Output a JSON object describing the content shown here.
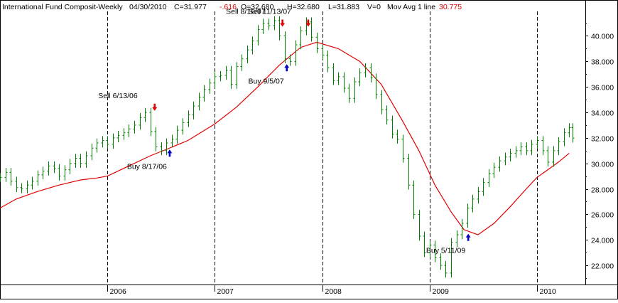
{
  "header": {
    "title": "International Fund Composit-Weekly",
    "date": "04/30/2010",
    "close": "C=31.977",
    "change": "-.616",
    "open": "O=32.680",
    "high": "H=32.680",
    "low": "L=31.883",
    "volume": "V=0",
    "mov_avg_label": "Mov Avg 1 line",
    "mov_avg_value": "30.775"
  },
  "colors": {
    "bars": "#008000",
    "moving_average": "#e00000",
    "sell_arrow": "#e00000",
    "buy_arrow": "#0000c0",
    "change_text": "#e00000",
    "mov_avg_value_text": "#e00000",
    "grid": "#000000"
  },
  "chart_data": {
    "type": "line",
    "title": "International Fund Composit-Weekly",
    "x_range": [
      2005.0,
      2010.45
    ],
    "ylim": [
      20.5,
      41.7
    ],
    "y_axis_side": "right",
    "y_ticks": [
      "22.000",
      "24.000",
      "26.000",
      "28.000",
      "30.000",
      "32.000",
      "34.000",
      "36.000",
      "38.000",
      "40.000"
    ],
    "x_ticks": [
      {
        "label": "2006",
        "x": 2006.0
      },
      {
        "label": "2007",
        "x": 2007.0
      },
      {
        "label": "2008",
        "x": 2008.0
      },
      {
        "label": "2009",
        "x": 2009.0
      },
      {
        "label": "2010",
        "x": 2010.0
      }
    ],
    "vertical_gridlines": "dashed at year boundaries",
    "series": [
      {
        "name": "International Fund Composit",
        "style": "weekly OHLC bars",
        "points": [
          [
            2005.0,
            28.9
          ],
          [
            2005.05,
            29.3
          ],
          [
            2005.1,
            28.6
          ],
          [
            2005.15,
            28.1
          ],
          [
            2005.2,
            28.0
          ],
          [
            2005.25,
            28.3
          ],
          [
            2005.3,
            28.6
          ],
          [
            2005.35,
            29.1
          ],
          [
            2005.4,
            29.4
          ],
          [
            2005.45,
            29.8
          ],
          [
            2005.5,
            29.6
          ],
          [
            2005.55,
            29.0
          ],
          [
            2005.6,
            29.5
          ],
          [
            2005.65,
            30.0
          ],
          [
            2005.7,
            30.4
          ],
          [
            2005.75,
            30.0
          ],
          [
            2005.8,
            30.6
          ],
          [
            2005.85,
            31.2
          ],
          [
            2005.9,
            31.6
          ],
          [
            2005.95,
            31.8
          ],
          [
            2006.0,
            31.5
          ],
          [
            2006.05,
            32.0
          ],
          [
            2006.1,
            32.2
          ],
          [
            2006.15,
            32.4
          ],
          [
            2006.2,
            32.7
          ],
          [
            2006.25,
            33.0
          ],
          [
            2006.3,
            33.6
          ],
          [
            2006.35,
            34.0
          ],
          [
            2006.4,
            32.5
          ],
          [
            2006.45,
            31.3
          ],
          [
            2006.5,
            31.0
          ],
          [
            2006.55,
            31.6
          ],
          [
            2006.6,
            31.9
          ],
          [
            2006.65,
            32.6
          ],
          [
            2006.7,
            33.2
          ],
          [
            2006.75,
            33.8
          ],
          [
            2006.8,
            34.5
          ],
          [
            2006.85,
            35.2
          ],
          [
            2006.9,
            35.8
          ],
          [
            2006.95,
            36.3
          ],
          [
            2007.0,
            36.8
          ],
          [
            2007.05,
            36.9
          ],
          [
            2007.1,
            37.3
          ],
          [
            2007.15,
            36.2
          ],
          [
            2007.2,
            37.6
          ],
          [
            2007.25,
            38.2
          ],
          [
            2007.3,
            38.9
          ],
          [
            2007.35,
            39.6
          ],
          [
            2007.4,
            40.5
          ],
          [
            2007.45,
            41.0
          ],
          [
            2007.5,
            40.8
          ],
          [
            2007.55,
            41.2
          ],
          [
            2007.6,
            40.0
          ],
          [
            2007.65,
            38.2
          ],
          [
            2007.7,
            38.0
          ],
          [
            2007.75,
            39.3
          ],
          [
            2007.8,
            40.4
          ],
          [
            2007.85,
            41.1
          ],
          [
            2007.9,
            39.9
          ],
          [
            2007.95,
            39.0
          ],
          [
            2008.0,
            38.5
          ],
          [
            2008.05,
            37.5
          ],
          [
            2008.1,
            36.5
          ],
          [
            2008.15,
            36.8
          ],
          [
            2008.2,
            35.9
          ],
          [
            2008.25,
            35.1
          ],
          [
            2008.3,
            36.4
          ],
          [
            2008.35,
            37.1
          ],
          [
            2008.4,
            37.5
          ],
          [
            2008.45,
            36.7
          ],
          [
            2008.5,
            35.4
          ],
          [
            2008.55,
            34.2
          ],
          [
            2008.6,
            33.4
          ],
          [
            2008.65,
            32.3
          ],
          [
            2008.7,
            31.9
          ],
          [
            2008.75,
            30.4
          ],
          [
            2008.8,
            28.3
          ],
          [
            2008.85,
            26.0
          ],
          [
            2008.9,
            24.3
          ],
          [
            2008.95,
            23.0
          ],
          [
            2009.0,
            23.6
          ],
          [
            2009.05,
            22.6
          ],
          [
            2009.1,
            22.0
          ],
          [
            2009.15,
            21.4
          ],
          [
            2009.2,
            23.8
          ],
          [
            2009.25,
            24.4
          ],
          [
            2009.3,
            25.3
          ],
          [
            2009.35,
            26.5
          ],
          [
            2009.4,
            27.2
          ],
          [
            2009.45,
            27.8
          ],
          [
            2009.5,
            28.5
          ],
          [
            2009.55,
            29.2
          ],
          [
            2009.6,
            29.7
          ],
          [
            2009.65,
            30.2
          ],
          [
            2009.7,
            30.5
          ],
          [
            2009.75,
            30.8
          ],
          [
            2009.8,
            31.0
          ],
          [
            2009.85,
            31.3
          ],
          [
            2009.9,
            31.0
          ],
          [
            2009.95,
            31.5
          ],
          [
            2010.0,
            31.8
          ],
          [
            2010.05,
            31.0
          ],
          [
            2010.1,
            30.1
          ],
          [
            2010.15,
            31.0
          ],
          [
            2010.2,
            31.7
          ],
          [
            2010.25,
            32.4
          ],
          [
            2010.3,
            32.8
          ],
          [
            2010.33,
            31.98
          ]
        ]
      },
      {
        "name": "Mov Avg 1 line",
        "style": "line",
        "points": [
          [
            2005.0,
            26.5
          ],
          [
            2005.15,
            27.2
          ],
          [
            2005.35,
            27.8
          ],
          [
            2005.55,
            28.3
          ],
          [
            2005.75,
            28.7
          ],
          [
            2005.9,
            28.85
          ],
          [
            2006.0,
            29.0
          ],
          [
            2006.2,
            29.8
          ],
          [
            2006.4,
            30.6
          ],
          [
            2006.55,
            31.1
          ],
          [
            2006.75,
            31.8
          ],
          [
            2007.0,
            33.1
          ],
          [
            2007.2,
            34.4
          ],
          [
            2007.4,
            36.0
          ],
          [
            2007.6,
            37.7
          ],
          [
            2007.8,
            39.1
          ],
          [
            2007.95,
            39.5
          ],
          [
            2008.15,
            39.0
          ],
          [
            2008.35,
            38.0
          ],
          [
            2008.55,
            36.2
          ],
          [
            2008.75,
            33.3
          ],
          [
            2008.9,
            31.0
          ],
          [
            2009.05,
            28.3
          ],
          [
            2009.2,
            26.2
          ],
          [
            2009.32,
            24.8
          ],
          [
            2009.45,
            24.4
          ],
          [
            2009.6,
            25.3
          ],
          [
            2009.75,
            26.6
          ],
          [
            2009.9,
            28.0
          ],
          [
            2010.0,
            28.9
          ],
          [
            2010.1,
            29.5
          ],
          [
            2010.2,
            30.1
          ],
          [
            2010.3,
            30.8
          ]
        ]
      }
    ],
    "annotations": [
      {
        "text": "Sell 6/13/06",
        "signal": "sell",
        "x": 2006.44,
        "y": 34.4
      },
      {
        "text": "Buy 8/17/06",
        "signal": "buy",
        "x": 2006.58,
        "y": 30.8
      },
      {
        "text": "Sell 8/16/07",
        "signal": "sell",
        "x": 2007.63,
        "y": 41.0
      },
      {
        "text": "Buy 9/5/07",
        "signal": "buy",
        "x": 2007.67,
        "y": 37.5
      },
      {
        "text": "Sell 11/13/07",
        "signal": "sell",
        "x": 2007.87,
        "y": 41.0
      },
      {
        "text": "Buy 5/11/09",
        "signal": "buy",
        "x": 2009.36,
        "y": 24.2
      }
    ]
  }
}
